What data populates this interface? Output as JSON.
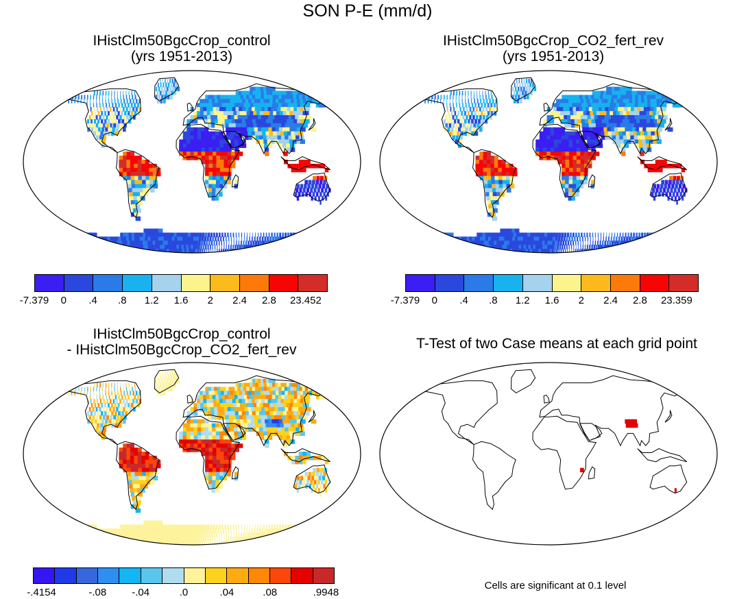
{
  "title": "SON P-E (mm/d)",
  "panels": [
    {
      "title_line1": "IHistClm50BgcCrop_control",
      "title_line2": "(yrs 1951-2013)",
      "colorbar": {
        "colors": [
          "#3a1ef2",
          "#2a48dd",
          "#2a7be8",
          "#17b2ef",
          "#a5d2ec",
          "#fbf48c",
          "#fcba1c",
          "#fc7a0a",
          "#f70505",
          "#d42c28"
        ],
        "labels": [
          "-7.379",
          "0",
          ".4",
          ".8",
          "1.2",
          "1.6",
          "2",
          "2.4",
          "2.8",
          "23.452"
        ]
      }
    },
    {
      "title_line1": "IHistClm50BgcCrop_CO2_fert_rev",
      "title_line2": "(yrs 1951-2013)",
      "colorbar": {
        "colors": [
          "#3a1ef2",
          "#2a48dd",
          "#2a7be8",
          "#17b2ef",
          "#a5d2ec",
          "#fbf48c",
          "#fcba1c",
          "#fc7a0a",
          "#f70505",
          "#d42c28"
        ],
        "labels": [
          "-7.379",
          "0",
          ".4",
          ".8",
          "1.2",
          "1.6",
          "2",
          "2.4",
          "2.8",
          "23.359"
        ]
      }
    },
    {
      "title_line1": "IHistClm50BgcCrop_control",
      "title_line2": "- IHistClm50BgcCrop_CO2_fert_rev",
      "colorbar": {
        "colors": [
          "#3516f0",
          "#1f3ae6",
          "#3667dc",
          "#2f8ff0",
          "#13b5f2",
          "#5bc6ec",
          "#b1dcf0",
          "#fdf39c",
          "#fdd21e",
          "#fcab13",
          "#fd8707",
          "#fb470a",
          "#e60000",
          "#c82828"
        ],
        "labels": [
          "-.4154",
          "-.08",
          "-.04",
          ".0",
          ".04",
          ".08",
          ".9948"
        ]
      }
    },
    {
      "title_line1": "T-Test of two Case means at each grid point",
      "note": "Cells are significant at 0.1 level"
    }
  ]
}
